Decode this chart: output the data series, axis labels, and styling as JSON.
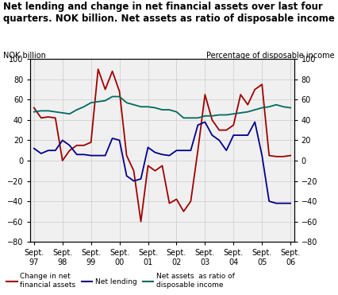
{
  "title_line1": "Net lending and change in net financial assets over last four",
  "title_line2": "quarters. NOK billion. Net assets as ratio of disposable income",
  "ylabel_left": "NOK billion",
  "ylabel_right": "Percentage of disposable income",
  "ylim": [
    -80,
    100
  ],
  "yticks": [
    -80,
    -60,
    -40,
    -20,
    0,
    20,
    40,
    60,
    80,
    100
  ],
  "x_labels": [
    "Sept.\n97",
    "Sept.\n98",
    "Sept.\n99",
    "Sept.\n00",
    "Sept.\n01",
    "Sept.\n02",
    "Sept.\n03",
    "Sept.\n04",
    "Sept.\n05",
    "Sept.\n06"
  ],
  "x_positions": [
    0,
    4,
    8,
    12,
    16,
    20,
    24,
    28,
    32,
    36
  ],
  "change_net_assets": {
    "label": "Change in net\nfinancial assets",
    "color": "#a00000",
    "x": [
      0,
      1,
      2,
      3,
      4,
      5,
      6,
      7,
      8,
      9,
      10,
      11,
      12,
      13,
      14,
      15,
      16,
      17,
      18,
      19,
      20,
      21,
      22,
      23,
      24,
      25,
      26,
      27,
      28,
      29,
      30,
      31,
      32,
      33,
      34,
      35,
      36
    ],
    "y": [
      52,
      42,
      43,
      42,
      0,
      10,
      15,
      15,
      18,
      90,
      70,
      88,
      68,
      5,
      -10,
      -60,
      -5,
      -10,
      -5,
      -42,
      -38,
      -50,
      -40,
      10,
      65,
      40,
      30,
      30,
      35,
      65,
      55,
      70,
      75,
      5,
      4,
      4,
      5
    ]
  },
  "net_lending": {
    "label": "Net lending",
    "color": "#00008B",
    "x": [
      0,
      1,
      2,
      3,
      4,
      5,
      6,
      7,
      8,
      9,
      10,
      11,
      12,
      13,
      14,
      15,
      16,
      17,
      18,
      19,
      20,
      21,
      22,
      23,
      24,
      25,
      26,
      27,
      28,
      29,
      30,
      31,
      32,
      33,
      34,
      35,
      36
    ],
    "y": [
      12,
      7,
      10,
      10,
      20,
      15,
      6,
      6,
      5,
      5,
      5,
      22,
      20,
      -15,
      -20,
      -18,
      13,
      8,
      6,
      5,
      10,
      10,
      10,
      35,
      38,
      25,
      20,
      10,
      25,
      25,
      25,
      38,
      5,
      -40,
      -42,
      -42,
      -42
    ]
  },
  "net_assets_ratio": {
    "label": "Net assets  as ratio of\ndisposable income",
    "color": "#006b5e",
    "x": [
      0,
      1,
      2,
      3,
      4,
      5,
      6,
      7,
      8,
      9,
      10,
      11,
      12,
      13,
      14,
      15,
      16,
      17,
      18,
      19,
      20,
      21,
      22,
      23,
      24,
      25,
      26,
      27,
      28,
      29,
      30,
      31,
      32,
      33,
      34,
      35,
      36
    ],
    "y": [
      48,
      49,
      49,
      48,
      47,
      46,
      50,
      53,
      57,
      58,
      59,
      63,
      63,
      57,
      55,
      53,
      53,
      52,
      50,
      50,
      48,
      42,
      42,
      42,
      44,
      44,
      45,
      45,
      46,
      47,
      48,
      50,
      52,
      53,
      55,
      53,
      52
    ]
  },
  "background_color": "#f0f0f0",
  "grid_color": "#cccccc"
}
